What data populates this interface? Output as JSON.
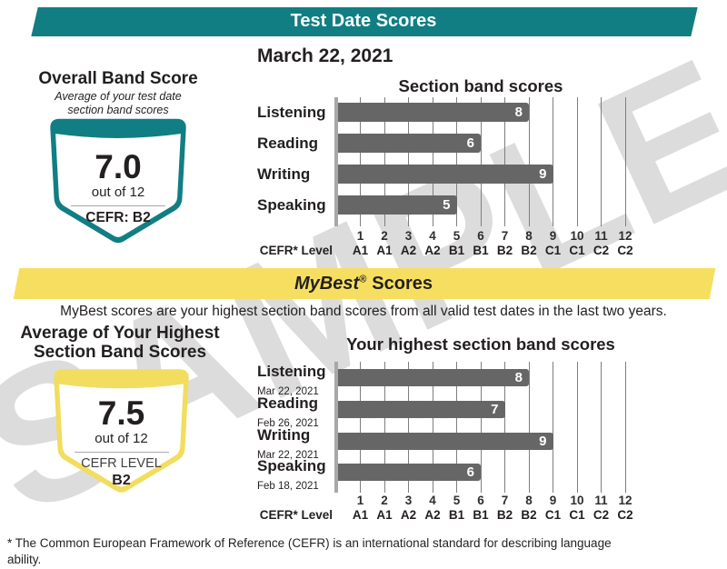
{
  "watermark": "SAMPLE",
  "colors": {
    "teal": "#117E83",
    "yellow": "#F6DF60",
    "badge_yellow": "#F2DD5F",
    "bar": "#666666",
    "grid_line": "#7e7e7e",
    "axis_line": "#a8a8a8"
  },
  "test_date_banner": {
    "title": "Test Date Scores"
  },
  "date_heading": "March 22, 2021",
  "overall": {
    "title": "Overall Band Score",
    "subtitle_line1": "Average of your test date",
    "subtitle_line2": "section band scores",
    "score": "7.0",
    "out_of": "out of 12",
    "cefr": "CEFR: B2"
  },
  "mybest_banner": {
    "brand": "MyBest",
    "reg": "®",
    "rest": "Scores"
  },
  "mybest_description": "MyBest scores are your highest section band scores from all valid test dates in the last two years.",
  "highest_average": {
    "title_line1": "Average of Your Highest",
    "title_line2": "Section Band Scores",
    "score": "7.5",
    "out_of": "out of 12",
    "cefr_label": "CEFR LEVEL",
    "cefr_value": "B2"
  },
  "footnote": {
    "line1": "* The Common European Framework of Reference (CEFR) is an international standard for describing language",
    "line2": "ability."
  },
  "chart_data": [
    {
      "type": "bar",
      "orientation": "horizontal",
      "title": "Section band scores",
      "categories": [
        "Listening",
        "Reading",
        "Writing",
        "Speaking"
      ],
      "values": [
        8,
        6,
        9,
        5
      ],
      "xlim": [
        0,
        12
      ],
      "grid": true,
      "axis_label": "CEFR* Level",
      "ticks": [
        "1",
        "2",
        "3",
        "4",
        "5",
        "6",
        "7",
        "8",
        "9",
        "10",
        "11",
        "12"
      ],
      "cefr_levels": [
        "A1",
        "A1",
        "A2",
        "A2",
        "B1",
        "B1",
        "B2",
        "B2",
        "C1",
        "C1",
        "C2",
        "C2"
      ]
    },
    {
      "type": "bar",
      "orientation": "horizontal",
      "title": "Your highest section band scores",
      "categories": [
        "Listening",
        "Reading",
        "Writing",
        "Speaking"
      ],
      "dates": [
        "Mar 22, 2021",
        "Feb 26, 2021",
        "Mar 22, 2021",
        "Feb 18, 2021"
      ],
      "values": [
        8,
        7,
        9,
        6
      ],
      "xlim": [
        0,
        12
      ],
      "grid": true,
      "axis_label": "CEFR* Level",
      "ticks": [
        "1",
        "2",
        "3",
        "4",
        "5",
        "6",
        "7",
        "8",
        "9",
        "10",
        "11",
        "12"
      ],
      "cefr_levels": [
        "A1",
        "A1",
        "A2",
        "A2",
        "B1",
        "B1",
        "B2",
        "B2",
        "C1",
        "C1",
        "C2",
        "C2"
      ]
    }
  ]
}
